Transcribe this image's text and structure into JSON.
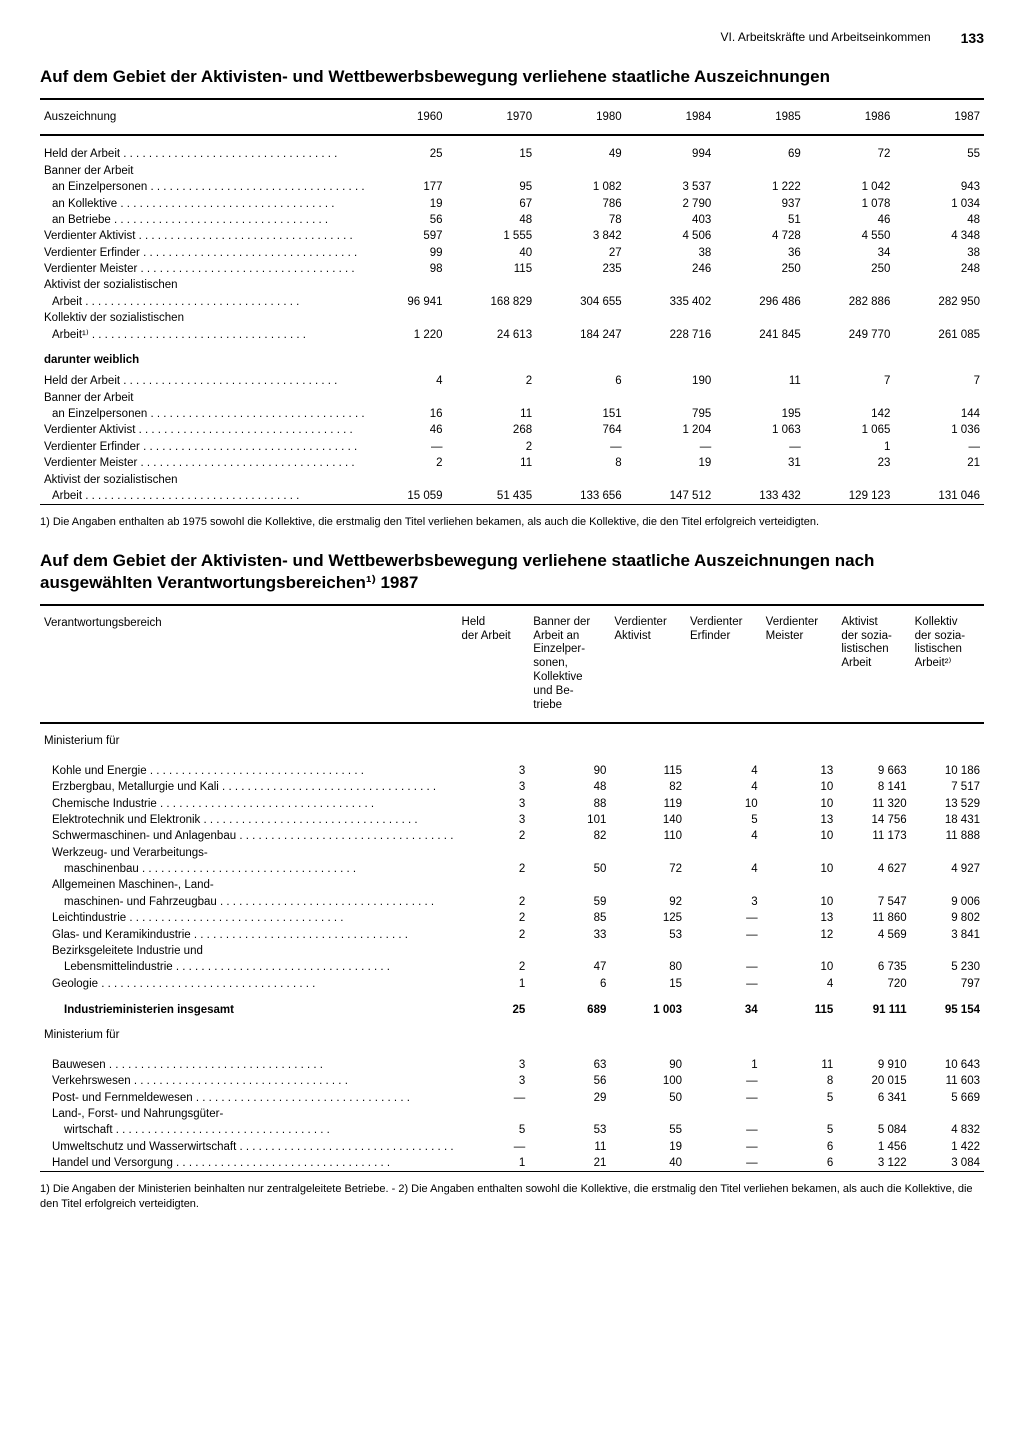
{
  "page": {
    "section": "VI. Arbeitskräfte und Arbeitseinkommen",
    "number": "133"
  },
  "table1": {
    "title": "Auf dem Gebiet der Aktivisten- und Wettbewerbsbewegung verliehene staatliche Auszeichnungen",
    "col_label": "Auszeichnung",
    "years": [
      "1960",
      "1970",
      "1980",
      "1984",
      "1985",
      "1986",
      "1987"
    ],
    "rows": [
      {
        "label": "Held der Arbeit",
        "indent": 0,
        "dots": true,
        "v": [
          "25",
          "15",
          "49",
          "994",
          "69",
          "72",
          "55"
        ]
      },
      {
        "label": "Banner der Arbeit",
        "indent": 0,
        "dots": false,
        "v": [
          "",
          "",
          "",
          "",
          "",
          "",
          ""
        ]
      },
      {
        "label": "an Einzelpersonen",
        "indent": 1,
        "dots": true,
        "v": [
          "177",
          "95",
          "1 082",
          "3 537",
          "1 222",
          "1 042",
          "943"
        ]
      },
      {
        "label": "an Kollektive",
        "indent": 1,
        "dots": true,
        "v": [
          "19",
          "67",
          "786",
          "2 790",
          "937",
          "1 078",
          "1 034"
        ]
      },
      {
        "label": "an Betriebe",
        "indent": 1,
        "dots": true,
        "v": [
          "56",
          "48",
          "78",
          "403",
          "51",
          "46",
          "48"
        ]
      },
      {
        "label": "Verdienter Aktivist",
        "indent": 0,
        "dots": true,
        "v": [
          "597",
          "1 555",
          "3 842",
          "4 506",
          "4 728",
          "4 550",
          "4 348"
        ]
      },
      {
        "label": "Verdienter Erfinder",
        "indent": 0,
        "dots": true,
        "v": [
          "99",
          "40",
          "27",
          "38",
          "36",
          "34",
          "38"
        ]
      },
      {
        "label": "Verdienter Meister",
        "indent": 0,
        "dots": true,
        "v": [
          "98",
          "115",
          "235",
          "246",
          "250",
          "250",
          "248"
        ]
      },
      {
        "label": "Aktivist der sozialistischen",
        "indent": 0,
        "dots": false,
        "v": [
          "",
          "",
          "",
          "",
          "",
          "",
          ""
        ]
      },
      {
        "label": "Arbeit",
        "indent": 1,
        "dots": true,
        "v": [
          "96 941",
          "168 829",
          "304 655",
          "335 402",
          "296 486",
          "282 886",
          "282 950"
        ]
      },
      {
        "label": "Kollektiv der sozialistischen",
        "indent": 0,
        "dots": false,
        "v": [
          "",
          "",
          "",
          "",
          "",
          "",
          ""
        ]
      },
      {
        "label": "Arbeit¹⁾",
        "indent": 1,
        "dots": true,
        "v": [
          "1 220",
          "24 613",
          "184 247",
          "228 716",
          "241 845",
          "249 770",
          "261 085"
        ]
      }
    ],
    "sub_heading": "darunter weiblich",
    "rows2": [
      {
        "label": "Held der Arbeit",
        "indent": 0,
        "dots": true,
        "v": [
          "4",
          "2",
          "6",
          "190",
          "11",
          "7",
          "7"
        ]
      },
      {
        "label": "Banner der Arbeit",
        "indent": 0,
        "dots": false,
        "v": [
          "",
          "",
          "",
          "",
          "",
          "",
          ""
        ]
      },
      {
        "label": "an Einzelpersonen",
        "indent": 1,
        "dots": true,
        "v": [
          "16",
          "11",
          "151",
          "795",
          "195",
          "142",
          "144"
        ]
      },
      {
        "label": "Verdienter Aktivist",
        "indent": 0,
        "dots": true,
        "v": [
          "46",
          "268",
          "764",
          "1 204",
          "1 063",
          "1 065",
          "1 036"
        ]
      },
      {
        "label": "Verdienter Erfinder",
        "indent": 0,
        "dots": true,
        "v": [
          "—",
          "2",
          "—",
          "—",
          "—",
          "1",
          "—"
        ]
      },
      {
        "label": "Verdienter Meister",
        "indent": 0,
        "dots": true,
        "v": [
          "2",
          "11",
          "8",
          "19",
          "31",
          "23",
          "21"
        ]
      },
      {
        "label": "Aktivist der sozialistischen",
        "indent": 0,
        "dots": false,
        "v": [
          "",
          "",
          "",
          "",
          "",
          "",
          ""
        ]
      },
      {
        "label": "Arbeit",
        "indent": 1,
        "dots": true,
        "v": [
          "15 059",
          "51 435",
          "133 656",
          "147 512",
          "133 432",
          "129 123",
          "131 046"
        ]
      }
    ],
    "footnote": "1) Die Angaben enthalten ab 1975 sowohl die Kollektive, die erstmalig den Titel verliehen bekamen, als auch die Kollektive, die den Titel erfolgreich verteidigten."
  },
  "table2": {
    "title": "Auf dem Gebiet der Aktivisten- und Wettbewerbsbewegung verliehene staatliche Auszeichnungen nach ausgewählten Verantwortungsbereichen¹⁾ 1987",
    "col_label": "Verantwortungsbereich",
    "heads": [
      "Held\nder Arbeit",
      "Banner der\nArbeit an\nEinzelper-\nsonen,\nKollektive\nund Be-\ntriebe",
      "Verdienter\nAktivist",
      "Verdienter\nErfinder",
      "Verdienter\nMeister",
      "Aktivist\nder sozia-\nlistischen\nArbeit",
      "Kollektiv\nder sozia-\nlistischen\nArbeit²⁾"
    ],
    "section1": "Ministerium für",
    "rows1": [
      {
        "label": "Kohle und Energie",
        "indent": 1,
        "dots": true,
        "v": [
          "3",
          "90",
          "115",
          "4",
          "13",
          "9 663",
          "10 186"
        ]
      },
      {
        "label": "Erzbergbau, Metallurgie und Kali",
        "indent": 1,
        "dots": true,
        "v": [
          "3",
          "48",
          "82",
          "4",
          "10",
          "8 141",
          "7 517"
        ]
      },
      {
        "label": "Chemische Industrie",
        "indent": 1,
        "dots": true,
        "v": [
          "3",
          "88",
          "119",
          "10",
          "10",
          "11 320",
          "13 529"
        ]
      },
      {
        "label": "Elektrotechnik und Elektronik",
        "indent": 1,
        "dots": true,
        "v": [
          "3",
          "101",
          "140",
          "5",
          "13",
          "14 756",
          "18 431"
        ]
      },
      {
        "label": "Schwermaschinen- und Anlagenbau",
        "indent": 1,
        "dots": true,
        "v": [
          "2",
          "82",
          "110",
          "4",
          "10",
          "11 173",
          "11 888"
        ]
      },
      {
        "label": "Werkzeug- und Verarbeitungs-",
        "indent": 1,
        "dots": false,
        "v": [
          "",
          "",
          "",
          "",
          "",
          "",
          ""
        ]
      },
      {
        "label": "maschinenbau",
        "indent": 2,
        "dots": true,
        "v": [
          "2",
          "50",
          "72",
          "4",
          "10",
          "4 627",
          "4 927"
        ]
      },
      {
        "label": "Allgemeinen Maschinen-, Land-",
        "indent": 1,
        "dots": false,
        "v": [
          "",
          "",
          "",
          "",
          "",
          "",
          ""
        ]
      },
      {
        "label": "maschinen- und Fahrzeugbau",
        "indent": 2,
        "dots": true,
        "v": [
          "2",
          "59",
          "92",
          "3",
          "10",
          "7 547",
          "9 006"
        ]
      },
      {
        "label": "Leichtindustrie",
        "indent": 1,
        "dots": true,
        "v": [
          "2",
          "85",
          "125",
          "—",
          "13",
          "11 860",
          "9 802"
        ]
      },
      {
        "label": "Glas- und Keramikindustrie",
        "indent": 1,
        "dots": true,
        "v": [
          "2",
          "33",
          "53",
          "—",
          "12",
          "4 569",
          "3 841"
        ]
      },
      {
        "label": "Bezirksgeleitete Industrie und",
        "indent": 1,
        "dots": false,
        "v": [
          "",
          "",
          "",
          "",
          "",
          "",
          ""
        ]
      },
      {
        "label": "Lebensmittelindustrie",
        "indent": 2,
        "dots": true,
        "v": [
          "2",
          "47",
          "80",
          "—",
          "10",
          "6 735",
          "5 230"
        ]
      },
      {
        "label": "Geologie",
        "indent": 1,
        "dots": true,
        "v": [
          "1",
          "6",
          "15",
          "—",
          "4",
          "720",
          "797"
        ]
      }
    ],
    "total_row": {
      "label": "Industrieministerien insgesamt",
      "v": [
        "25",
        "689",
        "1 003",
        "34",
        "115",
        "91 111",
        "95 154"
      ]
    },
    "section2": "Ministerium für",
    "rows2": [
      {
        "label": "Bauwesen",
        "indent": 1,
        "dots": true,
        "v": [
          "3",
          "63",
          "90",
          "1",
          "11",
          "9 910",
          "10 643"
        ]
      },
      {
        "label": "Verkehrswesen",
        "indent": 1,
        "dots": true,
        "v": [
          "3",
          "56",
          "100",
          "—",
          "8",
          "20 015",
          "11 603"
        ]
      },
      {
        "label": "Post- und Fernmeldewesen",
        "indent": 1,
        "dots": true,
        "v": [
          "—",
          "29",
          "50",
          "—",
          "5",
          "6 341",
          "5 669"
        ]
      },
      {
        "label": "Land-, Forst- und Nahrungsgüter-",
        "indent": 1,
        "dots": false,
        "v": [
          "",
          "",
          "",
          "",
          "",
          "",
          ""
        ]
      },
      {
        "label": "wirtschaft",
        "indent": 2,
        "dots": true,
        "v": [
          "5",
          "53",
          "55",
          "—",
          "5",
          "5 084",
          "4 832"
        ]
      },
      {
        "label": "Umweltschutz und Wasserwirtschaft",
        "indent": 1,
        "dots": true,
        "v": [
          "—",
          "11",
          "19",
          "—",
          "6",
          "1 456",
          "1 422"
        ]
      },
      {
        "label": "Handel und Versorgung",
        "indent": 1,
        "dots": true,
        "v": [
          "1",
          "21",
          "40",
          "—",
          "6",
          "3 122",
          "3 084"
        ]
      }
    ],
    "footnote": "1) Die Angaben der Ministerien beinhalten nur zentralgeleitete Betriebe. - 2) Die Angaben enthalten sowohl die Kollektive, die erstmalig den Titel verliehen bekamen, als auch die Kollektive, die den Titel erfolgreich verteidigten."
  }
}
